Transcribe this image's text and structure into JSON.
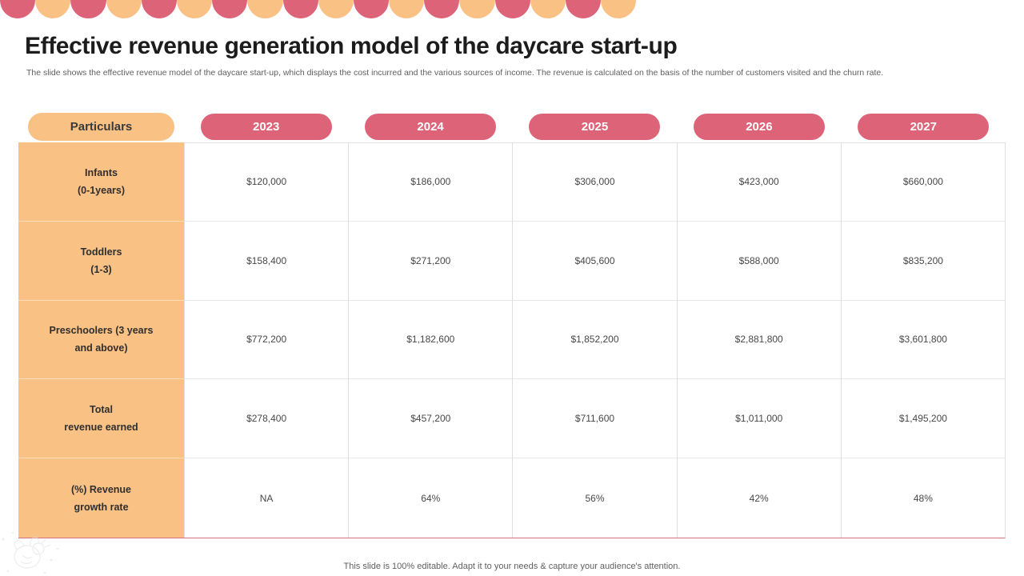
{
  "slide": {
    "title": "Effective revenue generation model of the daycare start-up",
    "subtitle": "The slide shows the effective revenue model of the daycare start-up, which displays the cost incurred and the various sources of income. The revenue is calculated on the basis of the number of customers visited and the churn rate.",
    "footer": "This slide is 100% editable. Adapt it to your needs & capture your audience's attention."
  },
  "colors": {
    "pink": "#DD6378",
    "orange": "#FAC185",
    "title_text": "#1C1C1C",
    "muted_text": "#5F5F5F",
    "value_text": "#474747",
    "grid_border": "#DEDEDE",
    "bottom_border": "#D4717F"
  },
  "decoration": {
    "top_band_circle_count": 18,
    "alternating_colors": [
      "#DD6378",
      "#FAC185"
    ]
  },
  "table": {
    "columns": [
      "Particulars",
      "2023",
      "2024",
      "2025",
      "2026",
      "2027"
    ],
    "rows": [
      {
        "label_line1": "Infants",
        "label_line2": "(0-1years)",
        "values": [
          "$120,000",
          "$186,000",
          "$306,000",
          "$423,000",
          "$660,000"
        ]
      },
      {
        "label_line1": "Toddlers",
        "label_line2": "(1-3)",
        "values": [
          "$158,400",
          "$271,200",
          "$405,600",
          "$588,000",
          "$835,200"
        ]
      },
      {
        "label_line1": "Preschoolers (3 years",
        "label_line2": "and above)",
        "values": [
          "$772,200",
          "$1,182,600",
          "$1,852,200",
          "$2,881,800",
          "$3,601,800"
        ]
      },
      {
        "label_line1": "Total",
        "label_line2": "revenue earned",
        "values": [
          "$278,400",
          "$457,200",
          "$711,600",
          "$1,011,000",
          "$1,495,200"
        ]
      },
      {
        "label_line1": "(%) Revenue",
        "label_line2": "growth rate",
        "values": [
          "NA",
          "64%",
          "56%",
          "42%",
          "48%"
        ]
      }
    ]
  },
  "chart_data": {
    "type": "table",
    "title": "Effective revenue generation model of the daycare start-up",
    "columns": [
      "Particulars",
      "2023",
      "2024",
      "2025",
      "2026",
      "2027"
    ],
    "rows": [
      [
        "Infants (0-1years)",
        120000,
        186000,
        306000,
        423000,
        660000
      ],
      [
        "Toddlers (1-3)",
        158400,
        271200,
        405600,
        588000,
        835200
      ],
      [
        "Preschoolers (3 years and above)",
        772200,
        1182600,
        1852200,
        2881800,
        3601800
      ],
      [
        "Total revenue earned",
        278400,
        457200,
        711600,
        1011000,
        1495200
      ],
      [
        "(%) Revenue growth rate",
        "NA",
        "64%",
        "56%",
        "42%",
        "48%"
      ]
    ]
  }
}
